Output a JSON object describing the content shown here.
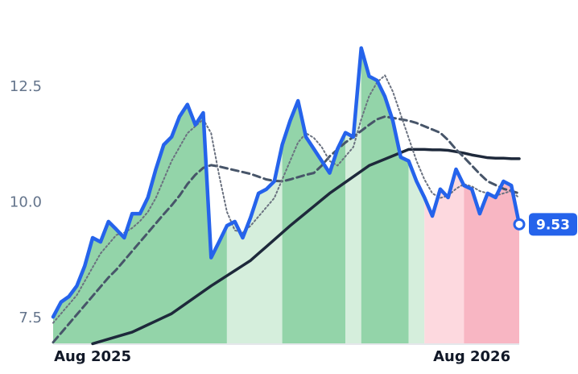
{
  "chart_data": {
    "type": "line",
    "categories": [
      null,
      null,
      null,
      null,
      null,
      "Aug 2025",
      null,
      null,
      null,
      null,
      null,
      null,
      null,
      null,
      null,
      null,
      null,
      null,
      null,
      null,
      null,
      null,
      null,
      null,
      null,
      null,
      null,
      null,
      null,
      null,
      null,
      null,
      null,
      null,
      null,
      null,
      null,
      null,
      null,
      null,
      null,
      null,
      null,
      null,
      null,
      null,
      null,
      null,
      null,
      null,
      null,
      null,
      null,
      "Aug 2026",
      null,
      null,
      null,
      null,
      null,
      null
    ],
    "series": [
      {
        "color": "#2563eb",
        "style": "solid",
        "width": 4.5,
        "values": [
          7.53,
          7.85,
          7.97,
          8.2,
          8.63,
          9.24,
          9.15,
          9.59,
          9.42,
          9.24,
          9.76,
          9.76,
          10.11,
          10.72,
          11.25,
          11.42,
          11.86,
          12.12,
          11.68,
          11.94,
          8.81,
          9.15,
          9.5,
          9.59,
          9.24,
          9.68,
          10.2,
          10.29,
          10.46,
          11.25,
          11.77,
          12.2,
          11.42,
          11.16,
          10.9,
          10.64,
          11.16,
          11.51,
          11.42,
          13.34,
          12.73,
          12.64,
          12.29,
          11.77,
          10.98,
          10.9,
          10.46,
          10.11,
          9.71,
          10.29,
          10.11,
          10.72,
          10.37,
          10.29,
          9.76,
          10.2,
          10.11,
          10.46,
          10.37,
          9.53
        ]
      },
      {
        "color": "#6b7280",
        "style": "dotted",
        "width": 2,
        "values": [
          7.4,
          7.6,
          7.8,
          8.0,
          8.3,
          8.6,
          8.9,
          9.1,
          9.3,
          9.35,
          9.45,
          9.6,
          9.8,
          10.1,
          10.5,
          10.9,
          11.2,
          11.5,
          11.65,
          11.8,
          11.5,
          10.6,
          9.8,
          9.4,
          9.35,
          9.5,
          9.7,
          9.9,
          10.1,
          10.5,
          10.9,
          11.3,
          11.5,
          11.4,
          11.2,
          10.9,
          10.8,
          11.0,
          11.2,
          11.8,
          12.3,
          12.6,
          12.75,
          12.4,
          11.9,
          11.4,
          10.9,
          10.5,
          10.2,
          10.1,
          10.15,
          10.3,
          10.4,
          10.35,
          10.25,
          10.2,
          10.15,
          10.2,
          10.25,
          10.1
        ]
      },
      {
        "color": "#475569",
        "style": "dashed",
        "width": 3,
        "values": [
          6.98,
          7.18,
          7.38,
          7.58,
          7.78,
          7.98,
          8.18,
          8.38,
          8.55,
          8.75,
          8.95,
          9.15,
          9.35,
          9.55,
          9.75,
          9.94,
          10.15,
          10.4,
          10.6,
          10.75,
          10.81,
          10.78,
          10.74,
          10.7,
          10.66,
          10.62,
          10.56,
          10.5,
          10.47,
          10.46,
          10.5,
          10.55,
          10.6,
          10.64,
          10.8,
          11.0,
          11.15,
          11.3,
          11.42,
          11.55,
          11.68,
          11.8,
          11.86,
          11.83,
          11.8,
          11.77,
          11.72,
          11.65,
          11.58,
          11.51,
          11.35,
          11.15,
          10.98,
          10.8,
          10.62,
          10.46,
          10.38,
          10.3,
          10.25,
          10.2
        ]
      },
      {
        "color": "#1e293b",
        "style": "solid",
        "width": 3.5,
        "values": [
          null,
          null,
          null,
          null,
          null,
          6.95,
          7.0,
          7.05,
          7.1,
          7.15,
          7.2,
          7.28,
          7.36,
          7.44,
          7.52,
          7.6,
          7.72,
          7.84,
          7.96,
          8.08,
          8.2,
          8.31,
          8.42,
          8.53,
          8.64,
          8.75,
          8.9,
          9.05,
          9.2,
          9.35,
          9.5,
          9.64,
          9.78,
          9.92,
          10.06,
          10.2,
          10.32,
          10.44,
          10.56,
          10.68,
          10.8,
          10.87,
          10.94,
          11.01,
          11.08,
          11.15,
          11.15,
          11.15,
          11.14,
          11.14,
          11.13,
          11.1,
          11.07,
          11.03,
          11.0,
          10.97,
          10.96,
          10.96,
          10.95,
          10.95
        ]
      }
    ],
    "regions": [
      {
        "from": 0,
        "to": 22,
        "color": "#93d4a9"
      },
      {
        "from": 22,
        "to": 29,
        "color": "#d5eedc"
      },
      {
        "from": 29,
        "to": 37,
        "color": "#93d4a9"
      },
      {
        "from": 37,
        "to": 39,
        "color": "#d5eedc"
      },
      {
        "from": 39,
        "to": 45,
        "color": "#93d4a9"
      },
      {
        "from": 45,
        "to": 47,
        "color": "#d5eedc"
      },
      {
        "from": 47,
        "to": 52,
        "color": "#fdd9df"
      },
      {
        "from": 52,
        "to": 59,
        "color": "#f8b6c3"
      }
    ],
    "ylim": [
      6.94,
      14.1
    ],
    "yticks": [
      7.5,
      {
        "value": 10,
        "label": "10.0"
      },
      12.5
    ],
    "last_value_color": "#2563eb"
  }
}
